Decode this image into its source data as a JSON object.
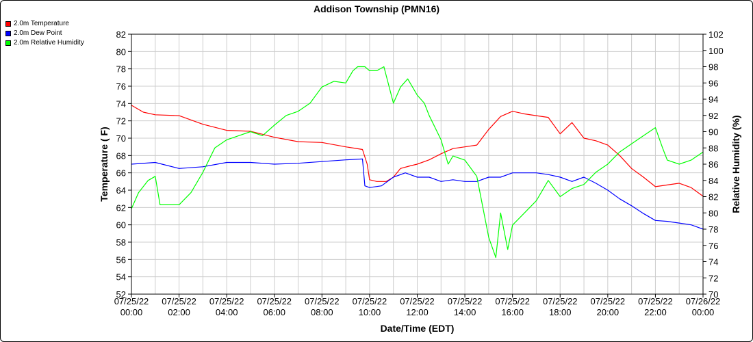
{
  "chart_data": {
    "type": "line",
    "title": "Addison Township (PMN16)",
    "xlabel": "Date/Time (EDT)",
    "ylabel_left": "Temperature ( F)",
    "ylabel_right": "Relative Humidity (%)",
    "ylim_left": [
      52,
      82
    ],
    "ylim_right": [
      70,
      102
    ],
    "yticks_left": [
      52,
      54,
      56,
      58,
      60,
      62,
      64,
      66,
      68,
      70,
      72,
      74,
      76,
      78,
      80,
      82
    ],
    "yticks_right": [
      70,
      72,
      74,
      76,
      78,
      80,
      82,
      84,
      86,
      88,
      90,
      92,
      94,
      96,
      98,
      100,
      102
    ],
    "xlim_hours": [
      0,
      24
    ],
    "x_ticks": [
      {
        "hour": 0,
        "date": "07/25/22",
        "time": "00:00"
      },
      {
        "hour": 2,
        "date": "07/25/22",
        "time": "02:00"
      },
      {
        "hour": 4,
        "date": "07/25/22",
        "time": "04:00"
      },
      {
        "hour": 6,
        "date": "07/25/22",
        "time": "06:00"
      },
      {
        "hour": 8,
        "date": "07/25/22",
        "time": "08:00"
      },
      {
        "hour": 10,
        "date": "07/25/22",
        "time": "10:00"
      },
      {
        "hour": 12,
        "date": "07/25/22",
        "time": "12:00"
      },
      {
        "hour": 14,
        "date": "07/25/22",
        "time": "14:00"
      },
      {
        "hour": 16,
        "date": "07/25/22",
        "time": "16:00"
      },
      {
        "hour": 18,
        "date": "07/25/22",
        "time": "18:00"
      },
      {
        "hour": 20,
        "date": "07/25/22",
        "time": "20:00"
      },
      {
        "hour": 22,
        "date": "07/25/22",
        "time": "22:00"
      },
      {
        "hour": 24,
        "date": "07/26/22",
        "time": "00:00"
      }
    ],
    "grid": true,
    "legend_position": "top-left",
    "series": [
      {
        "name": "2.0m Temperature",
        "color": "#ff0000",
        "axis": "left",
        "x": [
          0,
          0.5,
          1,
          2,
          3,
          4,
          5,
          6,
          7,
          8,
          9,
          9.7,
          9.9,
          10,
          10.3,
          10.7,
          11,
          11.3,
          11.7,
          12,
          12.5,
          13,
          13.5,
          14,
          14.5,
          15,
          15.5,
          16,
          16.5,
          17,
          17.5,
          18,
          18.5,
          19,
          19.5,
          20,
          20.5,
          21,
          21.5,
          22,
          22.5,
          23,
          23.5,
          24
        ],
        "y": [
          73.8,
          73.0,
          72.7,
          72.6,
          71.6,
          70.9,
          70.8,
          70.1,
          69.6,
          69.5,
          69.0,
          68.7,
          67.0,
          65.2,
          65.0,
          65.0,
          65.5,
          66.5,
          66.8,
          67.0,
          67.5,
          68.2,
          68.8,
          69.0,
          69.2,
          71.0,
          72.5,
          73.1,
          72.8,
          72.6,
          72.4,
          70.5,
          71.8,
          70.0,
          69.7,
          69.2,
          68.0,
          66.5,
          65.5,
          64.4,
          64.6,
          64.8,
          64.3,
          63.3
        ]
      },
      {
        "name": "2.0m Dew Point",
        "color": "#0000ff",
        "axis": "left",
        "x": [
          0,
          1,
          2,
          3,
          4,
          5,
          6,
          7,
          8,
          9,
          9.7,
          9.8,
          10,
          10.5,
          11,
          11.5,
          12,
          12.5,
          13,
          13.5,
          14,
          14.5,
          15,
          15.5,
          16,
          16.5,
          17,
          17.5,
          18,
          18.5,
          19,
          19.5,
          20,
          20.5,
          21,
          21.5,
          22,
          22.5,
          23,
          23.5,
          24
        ],
        "y": [
          67.0,
          67.2,
          66.5,
          66.7,
          67.2,
          67.2,
          67.0,
          67.1,
          67.3,
          67.5,
          67.6,
          64.5,
          64.3,
          64.5,
          65.5,
          66.0,
          65.5,
          65.5,
          65.0,
          65.2,
          65.0,
          65.0,
          65.5,
          65.5,
          66.0,
          66.0,
          66.0,
          65.8,
          65.5,
          65.0,
          65.5,
          64.8,
          64.0,
          63.0,
          62.2,
          61.3,
          60.5,
          60.4,
          60.2,
          60.0,
          59.5
        ]
      },
      {
        "name": "2.0m Relative Humidity",
        "color": "#00ff00",
        "axis": "right",
        "x": [
          0,
          0.3,
          0.7,
          1,
          1.2,
          1.5,
          2,
          2.5,
          3,
          3.5,
          4,
          4.5,
          5,
          5.5,
          6,
          6.5,
          7,
          7.5,
          8,
          8.5,
          9,
          9.3,
          9.5,
          9.8,
          10,
          10.3,
          10.6,
          11,
          11.3,
          11.6,
          12,
          12.3,
          12.5,
          13,
          13.3,
          13.5,
          14,
          14.5,
          15,
          15.3,
          15.5,
          15.8,
          16,
          16.5,
          17,
          17.5,
          18,
          18.5,
          19,
          19.5,
          20,
          20.5,
          21,
          21.5,
          22,
          22.3,
          22.5,
          23,
          23.5,
          24
        ],
        "y": [
          80.5,
          82.5,
          84.0,
          84.5,
          81.0,
          81.0,
          81.0,
          82.5,
          85.0,
          88.0,
          89.0,
          89.5,
          90.0,
          89.5,
          90.8,
          92.0,
          92.5,
          93.5,
          95.5,
          96.2,
          96.0,
          97.5,
          98.0,
          98.0,
          97.5,
          97.5,
          98.0,
          93.5,
          95.5,
          96.5,
          94.5,
          93.5,
          92.0,
          89.0,
          86.0,
          87.0,
          86.5,
          84.5,
          77.0,
          74.5,
          80.0,
          75.5,
          78.5,
          80.0,
          81.5,
          84.0,
          82.0,
          83.0,
          83.5,
          85.0,
          86.0,
          87.5,
          88.5,
          89.5,
          90.5,
          88.0,
          86.5,
          86.0,
          86.5,
          87.5
        ]
      }
    ]
  }
}
